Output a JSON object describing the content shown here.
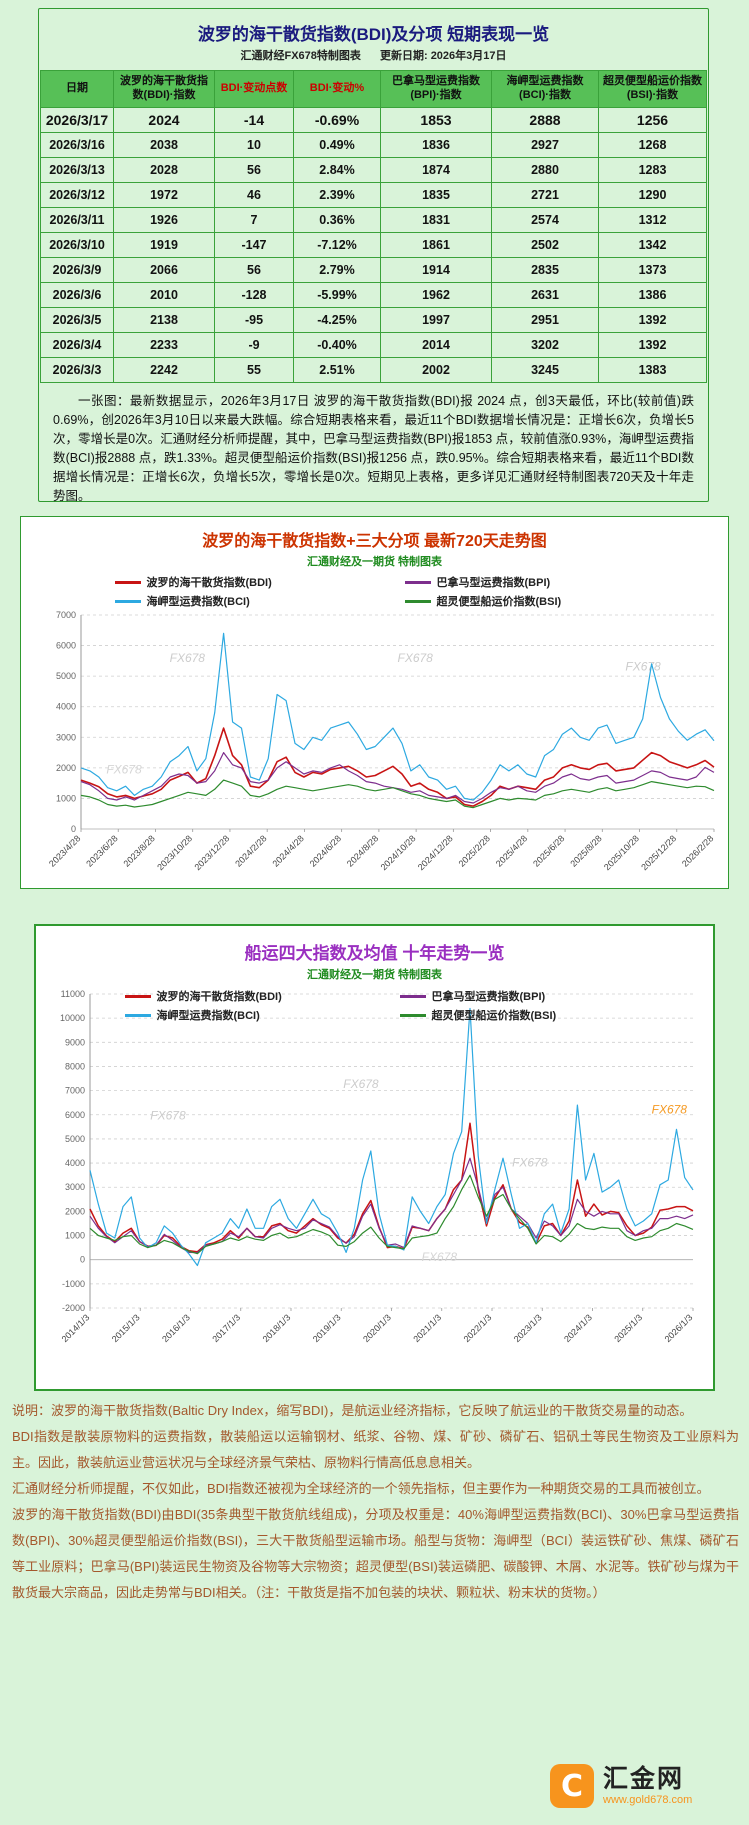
{
  "table_panel": {
    "title": "波罗的海干散货指数(BDI)及分项 短期表现一览",
    "source": "汇通财经FX678特制图表",
    "update_date": "更新日期: 2026年3月17日",
    "columns": [
      "日期",
      "波罗的海干散货指数(BDI)·指数",
      "BDI·变动点数",
      "BDI·变动%",
      "巴拿马型运费指数(BPI)·指数",
      "海岬型运费指数(BCI)·指数",
      "超灵便型船运价指数(BSI)·指数"
    ],
    "rows": [
      [
        "2026/3/17",
        "2024",
        "-14",
        "-0.69%",
        "1853",
        "2888",
        "1256"
      ],
      [
        "2026/3/16",
        "2038",
        "10",
        "0.49%",
        "1836",
        "2927",
        "1268"
      ],
      [
        "2026/3/13",
        "2028",
        "56",
        "2.84%",
        "1874",
        "2880",
        "1283"
      ],
      [
        "2026/3/12",
        "1972",
        "46",
        "2.39%",
        "1835",
        "2721",
        "1290"
      ],
      [
        "2026/3/11",
        "1926",
        "7",
        "0.36%",
        "1831",
        "2574",
        "1312"
      ],
      [
        "2026/3/10",
        "1919",
        "-147",
        "-7.12%",
        "1861",
        "2502",
        "1342"
      ],
      [
        "2026/3/9",
        "2066",
        "56",
        "2.79%",
        "1914",
        "2835",
        "1373"
      ],
      [
        "2026/3/6",
        "2010",
        "-128",
        "-5.99%",
        "1962",
        "2631",
        "1386"
      ],
      [
        "2026/3/5",
        "2138",
        "-95",
        "-4.25%",
        "1997",
        "2951",
        "1392"
      ],
      [
        "2026/3/4",
        "2233",
        "-9",
        "-0.40%",
        "2014",
        "3202",
        "1392"
      ],
      [
        "2026/3/3",
        "2242",
        "55",
        "2.51%",
        "2002",
        "3245",
        "1383"
      ]
    ],
    "note": "一张图：最新数据显示，2026年3月17日 波罗的海干散货指数(BDI)报 2024 点，创3天最低，环比(较前值)跌0.69%，创2026年3月10日以来最大跌幅。综合短期表格来看，最近11个BDI数据增长情况是：正增长6次，负增长5次，零增长是0次。汇通财经分析师提醒，其中，巴拿马型运费指数(BPI)报1853 点，较前值涨0.93%，海岬型运费指数(BCI)报2888 点，跌1.33%。超灵便型船运价指数(BSI)报1256 点，跌0.95%。综合短期表格来看，最近11个BDI数据增长情况是：正增长6次，负增长5次，零增长是0次。短期见上表格，更多详见汇通财经特制图表720天及十年走势图。"
  },
  "chart_data": [
    {
      "type": "line",
      "title": "波罗的海干散货指数+三大分项  最新720天走势图",
      "subtitle": "汇通财经及一期货 特制图表",
      "xlabel": "",
      "ylabel": "",
      "ylim": [
        0,
        7000
      ],
      "ytick_step": 1000,
      "grid": true,
      "legend_position": "top",
      "x_labels": [
        "2023/4/28",
        "2023/6/28",
        "2023/8/28",
        "2023/10/28",
        "2023/12/28",
        "2024/2/28",
        "2024/4/28",
        "2024/6/28",
        "2024/8/28",
        "2024/10/28",
        "2024/12/28",
        "2025/2/28",
        "2025/4/28",
        "2025/6/28",
        "2025/8/28",
        "2025/10/28",
        "2025/12/28",
        "2026/2/28"
      ],
      "watermarks": [
        {
          "text": "FX678",
          "x": 0.14,
          "y": 0.22,
          "color": "#cccccc"
        },
        {
          "text": "FX678",
          "x": 0.5,
          "y": 0.22,
          "color": "#cccccc"
        },
        {
          "text": "FX678",
          "x": 0.86,
          "y": 0.26,
          "color": "#cccccc"
        },
        {
          "text": "FX678",
          "x": 0.04,
          "y": 0.74,
          "color": "#d5d5d5"
        }
      ],
      "series": [
        {
          "id": "bdi",
          "name": "波罗的海干散货指数(BDI)",
          "color": "#c81414",
          "width": 1.6,
          "values": [
            1600,
            1500,
            1380,
            1150,
            1050,
            1100,
            1000,
            1080,
            1150,
            1300,
            1600,
            1720,
            1850,
            1500,
            1650,
            2400,
            3300,
            2400,
            2100,
            1400,
            1350,
            1600,
            2200,
            2350,
            1850,
            1700,
            1850,
            1800,
            1950,
            2000,
            2050,
            1900,
            1700,
            1750,
            1900,
            2050,
            1800,
            1400,
            1500,
            1300,
            1200,
            1000,
            1050,
            800,
            750,
            900,
            1100,
            1400,
            1300,
            1400,
            1350,
            1300,
            1600,
            1700,
            2000,
            2100,
            2000,
            1950,
            2100,
            2150,
            1900,
            1950,
            2000,
            2250,
            2500,
            2400,
            2200,
            2100,
            2000,
            2100,
            2242,
            2024
          ]
        },
        {
          "id": "bpi",
          "name": "巴拿马型运费指数(BPI)",
          "color": "#7d2e8d",
          "width": 1.2,
          "values": [
            1550,
            1450,
            1250,
            1000,
            950,
            1050,
            950,
            1100,
            1250,
            1400,
            1700,
            1800,
            1750,
            1500,
            1550,
            1900,
            2500,
            2100,
            2000,
            1550,
            1500,
            1600,
            2000,
            2200,
            2000,
            1800,
            1900,
            1850,
            2000,
            2100,
            1900,
            1750,
            1550,
            1500,
            1400,
            1350,
            1300,
            1200,
            1250,
            1100,
            1050,
            1000,
            1100,
            900,
            850,
            1000,
            1200,
            1350,
            1300,
            1400,
            1250,
            1200,
            1400,
            1500,
            1700,
            1800,
            1650,
            1600,
            1700,
            1750,
            1500,
            1550,
            1600,
            1750,
            1900,
            1850,
            1700,
            1650,
            1600,
            1700,
            2014,
            1853
          ]
        },
        {
          "id": "bci",
          "name": "海岬型运费指数(BCI)",
          "color": "#2da9e1",
          "width": 1.2,
          "values": [
            2000,
            1900,
            1700,
            1350,
            1250,
            1400,
            1100,
            1300,
            1400,
            1700,
            2200,
            2400,
            2700,
            1900,
            2300,
            3800,
            6400,
            3500,
            3300,
            1700,
            1600,
            2300,
            4400,
            4200,
            2800,
            2600,
            3000,
            2900,
            3300,
            3400,
            3500,
            3100,
            2600,
            2700,
            3000,
            3300,
            2800,
            1900,
            2100,
            1700,
            1600,
            1300,
            1400,
            1000,
            950,
            1200,
            1600,
            2100,
            1900,
            2100,
            1800,
            1700,
            2400,
            2600,
            3100,
            3300,
            3000,
            2900,
            3300,
            3400,
            2800,
            2900,
            3000,
            3600,
            5400,
            4300,
            3600,
            3200,
            2900,
            3100,
            3245,
            2888
          ]
        },
        {
          "id": "bsi",
          "name": "超灵便型船运价指数(BSI)",
          "color": "#2e8b2e",
          "width": 1.2,
          "values": [
            1100,
            1050,
            950,
            800,
            750,
            780,
            720,
            760,
            800,
            900,
            1000,
            1100,
            1200,
            1150,
            1100,
            1300,
            1600,
            1500,
            1400,
            1100,
            1050,
            1150,
            1300,
            1400,
            1350,
            1300,
            1250,
            1300,
            1350,
            1400,
            1450,
            1400,
            1300,
            1250,
            1300,
            1350,
            1250,
            1150,
            1100,
            1000,
            950,
            900,
            950,
            750,
            700,
            800,
            900,
            1000,
            950,
            1000,
            980,
            950,
            1100,
            1150,
            1250,
            1300,
            1250,
            1200,
            1300,
            1350,
            1250,
            1300,
            1350,
            1450,
            1550,
            1500,
            1450,
            1400,
            1350,
            1400,
            1383,
            1256
          ]
        }
      ]
    },
    {
      "type": "line",
      "title": "船运四大指数及均值 十年走势一览",
      "subtitle": "汇通财经及一期货 特制图表",
      "xlabel": "",
      "ylabel": "",
      "ylim": [
        -2000,
        11000
      ],
      "ytick_step": 1000,
      "grid": true,
      "legend_position": "top",
      "x_labels": [
        "2014/1/3",
        "2015/1/3",
        "2016/1/3",
        "2017/1/3",
        "2018/1/3",
        "2019/1/3",
        "2020/1/3",
        "2021/1/3",
        "2022/1/3",
        "2023/1/3",
        "2024/1/3",
        "2025/1/3",
        "2026/1/3"
      ],
      "watermarks": [
        {
          "text": "FX678",
          "x": 0.1,
          "y": 0.4,
          "color": "#cccccc"
        },
        {
          "text": "FX678",
          "x": 0.42,
          "y": 0.3,
          "color": "#cccccc"
        },
        {
          "text": "FX678",
          "x": 0.7,
          "y": 0.55,
          "color": "#cccccc"
        },
        {
          "text": "FX678",
          "x": 0.99,
          "y": 0.38,
          "color": "#f59a23",
          "anchor": "end"
        },
        {
          "text": "FX678",
          "x": 0.55,
          "y": 0.85,
          "color": "#d5d5d5"
        }
      ],
      "series": [
        {
          "id": "bdi",
          "name": "波罗的海干散货指数(BDI)",
          "color": "#c81414",
          "width": 1.5,
          "values": [
            2100,
            1400,
            980,
            750,
            1100,
            1300,
            750,
            560,
            590,
            1000,
            900,
            550,
            370,
            330,
            620,
            700,
            850,
            1200,
            900,
            1300,
            950,
            950,
            1400,
            1500,
            1200,
            1100,
            1400,
            1700,
            1450,
            1300,
            900,
            690,
            1050,
            1900,
            2450,
            1350,
            500,
            550,
            450,
            1350,
            1300,
            1200,
            1700,
            2100,
            2900,
            3300,
            5650,
            2900,
            1400,
            2550,
            3100,
            2100,
            1550,
            1350,
            680,
            1400,
            1500,
            1000,
            1600,
            3300,
            1800,
            2300,
            1850,
            2000,
            1950,
            1400,
            1000,
            1100,
            1350,
            2050,
            2100,
            2200,
            2200,
            2024
          ]
        },
        {
          "id": "bpi",
          "name": "巴拿马型运费指数(BPI)",
          "color": "#7d2e8d",
          "width": 1.2,
          "values": [
            1800,
            1300,
            950,
            700,
            950,
            1200,
            750,
            550,
            600,
            1050,
            800,
            500,
            300,
            290,
            600,
            650,
            750,
            1100,
            950,
            1300,
            950,
            900,
            1300,
            1450,
            1300,
            1200,
            1300,
            1650,
            1500,
            1350,
            950,
            680,
            950,
            1800,
            2300,
            1300,
            600,
            650,
            500,
            1400,
            1300,
            1200,
            1700,
            2100,
            2700,
            3300,
            4200,
            3000,
            1600,
            2700,
            3000,
            2100,
            1800,
            1500,
            900,
            1600,
            1400,
            1000,
            1400,
            2500,
            2000,
            1800,
            2000,
            1900,
            1900,
            1200,
            1000,
            1200,
            1300,
            1700,
            1700,
            1800,
            1700,
            1853
          ]
        },
        {
          "id": "bci",
          "name": "海岬型运费指数(BCI)",
          "color": "#2da9e1",
          "width": 1.2,
          "values": [
            3700,
            2300,
            1100,
            900,
            2200,
            2600,
            900,
            500,
            700,
            1400,
            1100,
            600,
            230,
            -240,
            700,
            900,
            1100,
            1700,
            1300,
            2100,
            1300,
            1300,
            2200,
            2500,
            1700,
            1300,
            1900,
            2500,
            1900,
            1700,
            1100,
            300,
            1300,
            3300,
            4500,
            1900,
            600,
            550,
            400,
            2600,
            2000,
            1500,
            2200,
            2700,
            4400,
            5300,
            10400,
            4300,
            1500,
            2900,
            4200,
            2700,
            1300,
            1500,
            700,
            1900,
            2300,
            1100,
            2100,
            6400,
            3300,
            4400,
            2800,
            3000,
            3300,
            2100,
            1400,
            1600,
            1900,
            3100,
            3300,
            5400,
            3400,
            2888
          ]
        },
        {
          "id": "bsi",
          "name": "超灵便型船运价指数(BSI)",
          "color": "#2e8b2e",
          "width": 1.2,
          "values": [
            1300,
            1000,
            900,
            800,
            950,
            1000,
            650,
            500,
            600,
            800,
            700,
            500,
            350,
            250,
            550,
            650,
            750,
            900,
            800,
            950,
            850,
            800,
            1000,
            1100,
            900,
            950,
            1100,
            1250,
            1150,
            1000,
            600,
            550,
            750,
            1100,
            1350,
            900,
            550,
            500,
            450,
            900,
            950,
            1000,
            1100,
            1700,
            2200,
            2900,
            3500,
            2600,
            1800,
            2500,
            2700,
            2100,
            1700,
            1300,
            650,
            1000,
            950,
            750,
            1050,
            1500,
            1300,
            1250,
            1350,
            1300,
            1300,
            950,
            800,
            900,
            950,
            1200,
            1300,
            1500,
            1400,
            1256
          ]
        }
      ]
    }
  ],
  "explanation": {
    "paragraphs": [
      "说明：波罗的海干散货指数(Baltic Dry Index，缩写BDI)，是航运业经济指标，它反映了航运业的干散货交易量的动态。",
      "BDI指数是散装原物料的运费指数，散装船运以运输钢材、纸浆、谷物、煤、矿砂、磷矿石、铝矾土等民生物资及工业原料为主。因此，散装航运业营运状况与全球经济景气荣枯、原物料行情高低息息相关。",
      "汇通财经分析师提醒，不仅如此，BDI指数还被视为全球经济的一个领先指标，但主要作为一种期货交易的工具而被创立。",
      "波罗的海干散货指数(BDI)由BDI(35条典型干散货航线组成)，分项及权重是：40%海岬型运费指数(BCI)、30%巴拿马型运费指数(BPI)、30%超灵便型船运价指数(BSI)，三大干散货船型运输市场。船型与货物：海岬型（BCI）装运铁矿砂、焦煤、磷矿石等工业原料；巴拿马(BPI)装运民生物资及谷物等大宗物资；超灵便型(BSI)装运磷肥、碳酸钾、木屑、水泥等。铁矿砂与煤为干散货最大宗商品，因此走势常与BDI相关。（注：干散货是指不加包装的块状、颗粒状、粉末状的货物。）"
    ]
  },
  "logo": {
    "icon_letter": "C",
    "name": "汇金网",
    "url": "www.gold678.com",
    "accent_color": "#f7941d"
  }
}
